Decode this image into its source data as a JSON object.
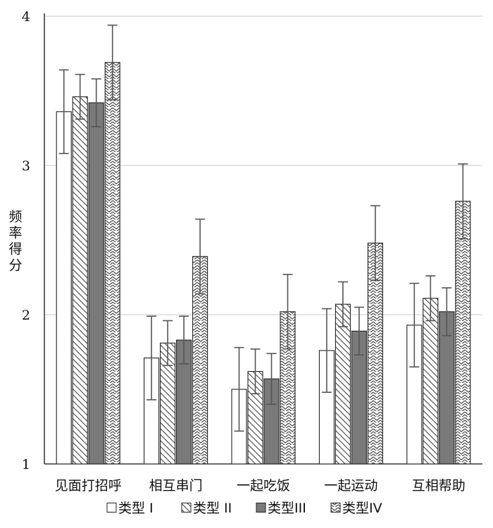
{
  "chart_data": {
    "type": "bar",
    "categories": [
      "见面打招呼",
      "相互串门",
      "一起吃饭",
      "一起运动",
      "互相帮助"
    ],
    "ylabel": "频率得分",
    "ylim": [
      1,
      4
    ],
    "yticks": [
      "1",
      "2",
      "3",
      "4"
    ],
    "grid": true,
    "legend_position": "bottom",
    "series": [
      {
        "name": "类型 I",
        "values": [
          3.36,
          1.71,
          1.5,
          1.76,
          1.93
        ],
        "errors": [
          0.28,
          0.28,
          0.28,
          0.28,
          0.28
        ],
        "pattern": "white",
        "color": "#ffffff"
      },
      {
        "name": "类型 II",
        "values": [
          3.46,
          1.81,
          1.62,
          2.07,
          2.11
        ],
        "errors": [
          0.15,
          0.15,
          0.15,
          0.15,
          0.15
        ],
        "pattern": "diagonal",
        "color": "#ffffff"
      },
      {
        "name": "类型III",
        "values": [
          3.42,
          1.83,
          1.57,
          1.89,
          2.02
        ],
        "errors": [
          0.16,
          0.16,
          0.17,
          0.16,
          0.16
        ],
        "pattern": "solid",
        "color": "#7a7a7a"
      },
      {
        "name": "类型IV",
        "values": [
          3.69,
          2.39,
          2.02,
          2.48,
          2.76
        ],
        "errors": [
          0.25,
          0.25,
          0.25,
          0.25,
          0.25
        ],
        "pattern": "zigzag",
        "color": "#ffffff"
      }
    ]
  }
}
